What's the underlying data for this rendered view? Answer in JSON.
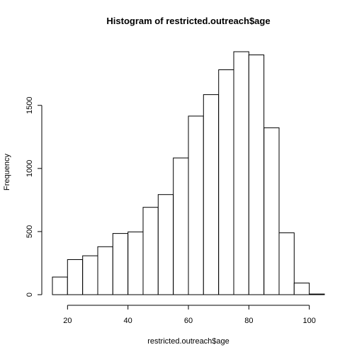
{
  "chart_data": {
    "type": "bar",
    "title": "Histogram of restricted.outreach$age",
    "xlabel": "restricted.outreach$age",
    "ylabel": "Frequency",
    "bin_edges": [
      15,
      20,
      25,
      30,
      35,
      40,
      45,
      50,
      55,
      60,
      65,
      70,
      75,
      80,
      85,
      90,
      95,
      100,
      105
    ],
    "values": [
      140,
      278,
      308,
      380,
      485,
      497,
      692,
      793,
      1083,
      1415,
      1585,
      1782,
      1925,
      1900,
      1322,
      490,
      92,
      5
    ],
    "x_ticks": [
      20,
      40,
      60,
      80,
      100
    ],
    "y_ticks": [
      0,
      500,
      1000,
      1500
    ],
    "xlim": [
      15,
      105
    ],
    "ylim": [
      0,
      1925
    ]
  }
}
